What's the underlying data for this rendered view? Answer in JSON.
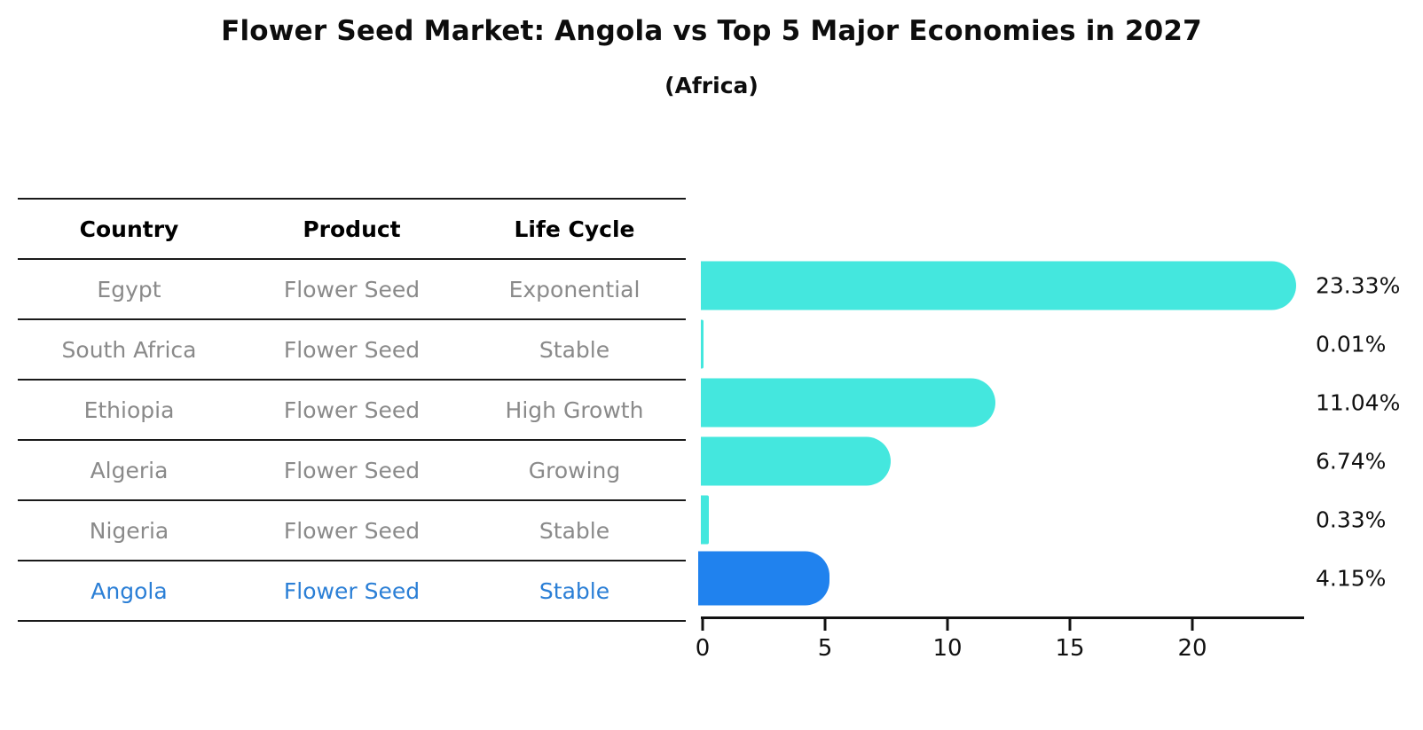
{
  "header": {
    "title": "Flower Seed Market: Angola vs Top 5 Major Economies in 2027",
    "subtitle": "(Africa)"
  },
  "table": {
    "headers": [
      "Country",
      "Product",
      "Life Cycle"
    ],
    "rows": [
      {
        "country": "Egypt",
        "product": "Flower Seed",
        "life_cycle": "Exponential",
        "highlight": false
      },
      {
        "country": "South Africa",
        "product": "Flower Seed",
        "life_cycle": "Stable",
        "highlight": false
      },
      {
        "country": "Ethiopia",
        "product": "Flower Seed",
        "life_cycle": "High Growth",
        "highlight": false
      },
      {
        "country": "Algeria",
        "product": "Flower Seed",
        "life_cycle": "Growing",
        "highlight": false
      },
      {
        "country": "Nigeria",
        "product": "Flower Seed",
        "life_cycle": "Stable",
        "highlight": false
      },
      {
        "country": "Angola",
        "product": "Flower Seed",
        "life_cycle": "Stable",
        "highlight": true
      }
    ]
  },
  "chart_data": {
    "type": "bar",
    "orientation": "horizontal",
    "title": "Flower Seed Market: Angola vs Top 5 Major Economies in 2027",
    "subtitle": "(Africa)",
    "categories": [
      "Egypt",
      "South Africa",
      "Ethiopia",
      "Algeria",
      "Nigeria",
      "Angola"
    ],
    "values": [
      23.33,
      0.01,
      11.04,
      6.74,
      0.33,
      4.15
    ],
    "value_labels": [
      "23.33%",
      "0.01%",
      "11.04%",
      "6.74%",
      "0.33%",
      "4.15%"
    ],
    "x_ticks": [
      0,
      5,
      10,
      15,
      20
    ],
    "xlim": [
      0,
      24.6
    ],
    "grid": false,
    "legend": "none",
    "bar_color": "#44e7de",
    "highlight_bar_color": "#2082ee",
    "highlight_index": 5,
    "text_color": "#8a8a8a",
    "highlight_text_color": "#2b7fd6"
  }
}
